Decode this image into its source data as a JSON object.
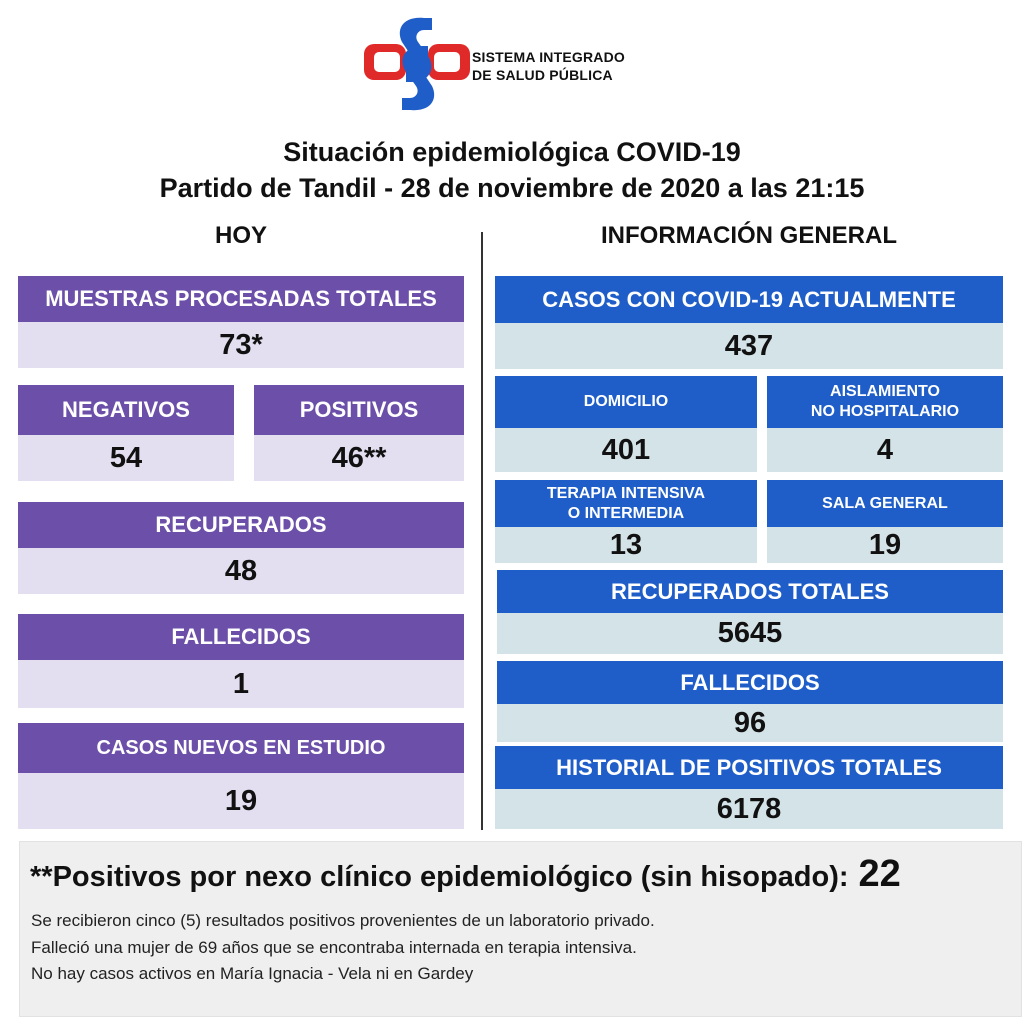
{
  "header": {
    "logo_line1": "SISTEMA INTEGRADO",
    "logo_line2": "DE SALUD PÚBLICA",
    "title_line1": "Situación epidemiológica COVID-19",
    "title_line2": "Partido de Tandil - 28 de noviembre de 2020 a las 21:15"
  },
  "sections": {
    "today": "HOY",
    "general": "INFORMACIÓN GENERAL"
  },
  "today": {
    "muestras_label": "MUESTRAS PROCESADAS TOTALES",
    "muestras_value": "73*",
    "negativos_label": "NEGATIVOS",
    "negativos_value": "54",
    "positivos_label": "POSITIVOS",
    "positivos_value": "46**",
    "recuperados_label": "RECUPERADOS",
    "recuperados_value": "48",
    "fallecidos_label": "FALLECIDOS",
    "fallecidos_value": "1",
    "nuevos_label": "CASOS NUEVOS EN ESTUDIO",
    "nuevos_value": "19"
  },
  "general": {
    "actuales_label": "CASOS CON COVID-19 ACTUALMENTE",
    "actuales_value": "437",
    "domicilio_label": "DOMICILIO",
    "domicilio_value": "401",
    "aislamiento_label_1": "AISLAMIENTO",
    "aislamiento_label_2": "NO HOSPITALARIO",
    "aislamiento_value": "4",
    "terapia_label_1": "TERAPIA INTENSIVA",
    "terapia_label_2": "O INTERMEDIA",
    "terapia_value": "13",
    "sala_label": "SALA GENERAL",
    "sala_value": "19",
    "recuperados_label": "RECUPERADOS TOTALES",
    "recuperados_value": "5645",
    "fallecidos_label": "FALLECIDOS",
    "fallecidos_value": "96",
    "historial_label": "HISTORIAL DE POSITIVOS TOTALES",
    "historial_value": "6178"
  },
  "notes": {
    "nexo_label": "**Positivos por nexo clínico epidemiológico (sin hisopado):",
    "nexo_value": "22",
    "line1": "Se recibieron cinco (5) resultados positivos  provenientes de un laboratorio privado.",
    "line2": "Falleció una mujer de 69 años que se encontraba internada en terapia intensiva.",
    "line3": "No hay casos activos en María Ignacia - Vela ni en Gardey"
  },
  "colors": {
    "purple_header": "#6b4fa8",
    "purple_value": "#e3dff0",
    "blue_header": "#1f5ec9",
    "blue_value": "#d4e3e7",
    "logo_red": "#e02a2a",
    "logo_blue": "#1f5ec9"
  }
}
